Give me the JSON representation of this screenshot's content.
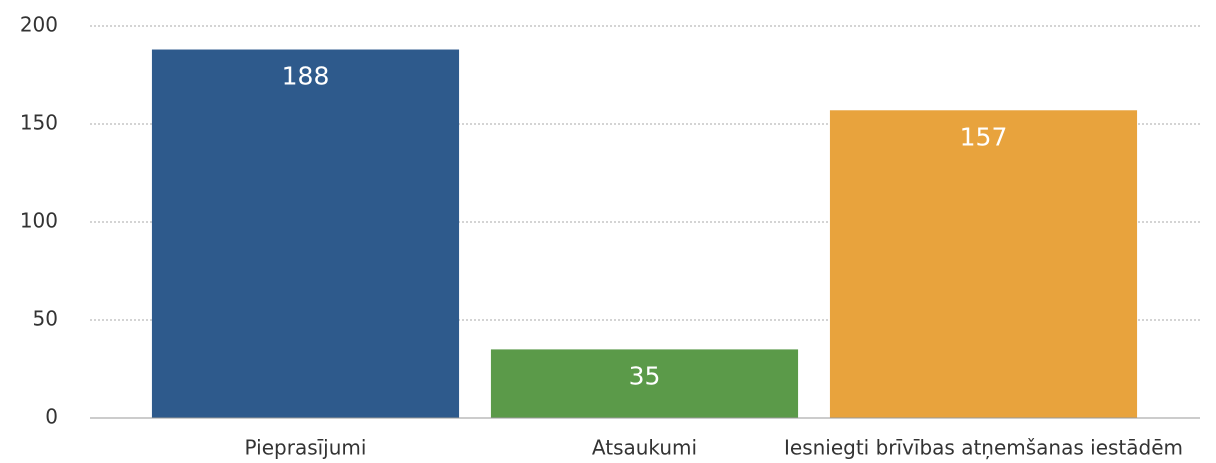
{
  "chart_data": {
    "type": "bar",
    "categories": [
      "Pieprasījumi",
      "Atsaukumi",
      "Iesniegti brīvības atņemšanas iestādēm"
    ],
    "values": [
      188,
      35,
      157
    ],
    "colors": [
      "#2e5a8c",
      "#5b9a49",
      "#e8a33d"
    ],
    "ylim": [
      0,
      200
    ],
    "yticks": [
      0,
      50,
      100,
      150,
      200
    ],
    "grid": true
  }
}
